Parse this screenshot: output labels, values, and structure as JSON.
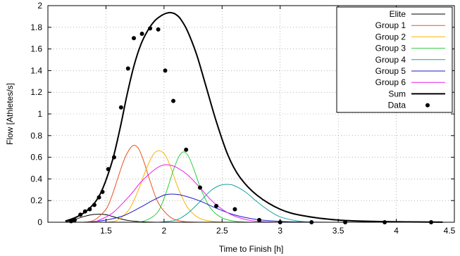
{
  "chart_data": {
    "type": "line",
    "title": "",
    "xlabel": "Time to Finish [h]",
    "ylabel": "Flow [Athletes/s]",
    "xlim": [
      1,
      4.5
    ],
    "ylim": [
      0,
      2
    ],
    "grid": true,
    "legend_position": "top-right",
    "x_ticks": [
      1.5,
      2,
      2.5,
      3,
      3.5,
      4,
      4.5
    ],
    "x_tick_labels": [
      "1.5",
      "2",
      "2.5",
      "3",
      "3.5",
      "4",
      "4.5"
    ],
    "y_ticks": [
      0,
      0.2,
      0.4,
      0.6,
      0.8,
      1,
      1.2,
      1.4,
      1.6,
      1.8,
      2
    ],
    "y_tick_labels": [
      "0",
      "0.2",
      "0.4",
      "0.6",
      "0.8",
      "1",
      "1.2",
      "1.4",
      "1.6",
      "1.8",
      "2"
    ],
    "series": [
      {
        "name": "Elite",
        "color": "#000000",
        "style": "line",
        "x": [
          1.15,
          1.22,
          1.3,
          1.38,
          1.45,
          1.5,
          1.55,
          1.6,
          1.65,
          1.7,
          1.8,
          1.9,
          2.0
        ],
        "y": [
          0.0,
          0.02,
          0.05,
          0.07,
          0.075,
          0.07,
          0.055,
          0.04,
          0.025,
          0.015,
          0.005,
          0.001,
          0.0
        ]
      },
      {
        "name": "Group 1",
        "color": "#e8541e",
        "style": "line",
        "x": [
          1.3,
          1.4,
          1.5,
          1.55,
          1.6,
          1.65,
          1.7,
          1.74,
          1.78,
          1.82,
          1.88,
          1.95,
          2.05,
          2.15,
          2.25,
          2.35
        ],
        "y": [
          0.0,
          0.02,
          0.12,
          0.24,
          0.4,
          0.56,
          0.67,
          0.71,
          0.68,
          0.58,
          0.38,
          0.18,
          0.05,
          0.01,
          0.002,
          0.0
        ]
      },
      {
        "name": "Group 2",
        "color": "#f7b500",
        "style": "line",
        "x": [
          1.5,
          1.6,
          1.7,
          1.78,
          1.85,
          1.91,
          1.96,
          2.01,
          2.06,
          2.12,
          2.2,
          2.3,
          2.42,
          2.55
        ],
        "y": [
          0.0,
          0.02,
          0.12,
          0.3,
          0.5,
          0.63,
          0.66,
          0.62,
          0.5,
          0.32,
          0.14,
          0.04,
          0.008,
          0.0
        ]
      },
      {
        "name": "Group 3",
        "color": "#2ecc40",
        "style": "line",
        "x": [
          1.75,
          1.85,
          1.95,
          2.02,
          2.08,
          2.13,
          2.17,
          2.21,
          2.26,
          2.32,
          2.4,
          2.5,
          2.62,
          2.75
        ],
        "y": [
          0.0,
          0.02,
          0.1,
          0.28,
          0.48,
          0.61,
          0.65,
          0.61,
          0.48,
          0.3,
          0.13,
          0.04,
          0.008,
          0.0
        ]
      },
      {
        "name": "Group 4",
        "color": "#1aa3a3",
        "style": "line",
        "x": [
          1.95,
          2.1,
          2.2,
          2.3,
          2.4,
          2.48,
          2.54,
          2.6,
          2.7,
          2.8,
          2.9,
          3.0,
          3.15,
          3.3
        ],
        "y": [
          0.0,
          0.02,
          0.08,
          0.18,
          0.29,
          0.34,
          0.35,
          0.34,
          0.28,
          0.19,
          0.11,
          0.05,
          0.012,
          0.0
        ]
      },
      {
        "name": "Group 5",
        "color": "#1a1acc",
        "style": "line",
        "x": [
          1.35,
          1.5,
          1.65,
          1.8,
          1.9,
          2.0,
          2.07,
          2.15,
          2.3,
          2.45,
          2.6,
          2.8,
          3.0,
          3.2,
          3.45
        ],
        "y": [
          0.0,
          0.02,
          0.06,
          0.14,
          0.2,
          0.25,
          0.26,
          0.25,
          0.2,
          0.13,
          0.07,
          0.025,
          0.008,
          0.002,
          0.0
        ]
      },
      {
        "name": "Group 6",
        "color": "#e81ee8",
        "style": "line",
        "x": [
          1.4,
          1.55,
          1.7,
          1.8,
          1.9,
          1.97,
          2.03,
          2.1,
          2.2,
          2.3,
          2.4,
          2.5,
          2.6,
          2.75,
          2.95
        ],
        "y": [
          0.0,
          0.08,
          0.24,
          0.37,
          0.47,
          0.52,
          0.53,
          0.51,
          0.44,
          0.33,
          0.21,
          0.12,
          0.06,
          0.015,
          0.0
        ]
      },
      {
        "name": "Sum",
        "color": "#000000",
        "style": "thick-line",
        "x": [
          1.15,
          1.25,
          1.35,
          1.45,
          1.55,
          1.62,
          1.68,
          1.74,
          1.8,
          1.86,
          1.92,
          1.98,
          2.02,
          2.06,
          2.1,
          2.14,
          2.2,
          2.28,
          2.36,
          2.45,
          2.55,
          2.65,
          2.8,
          3.0,
          3.2,
          3.5,
          3.8,
          4.1,
          4.4
        ],
        "y": [
          0.01,
          0.05,
          0.12,
          0.26,
          0.55,
          0.86,
          1.17,
          1.44,
          1.64,
          1.77,
          1.86,
          1.91,
          1.93,
          1.935,
          1.92,
          1.88,
          1.77,
          1.55,
          1.26,
          0.93,
          0.62,
          0.42,
          0.25,
          0.12,
          0.06,
          0.02,
          0.008,
          0.003,
          0.001
        ]
      },
      {
        "name": "Data",
        "color": "#000000",
        "style": "points",
        "x": [
          1.2,
          1.23,
          1.28,
          1.32,
          1.36,
          1.4,
          1.44,
          1.47,
          1.52,
          1.57,
          1.63,
          1.69,
          1.74,
          1.81,
          1.88,
          1.95,
          2.01,
          2.08,
          2.19,
          2.31,
          2.45,
          2.61,
          2.82,
          3.0,
          3.27,
          3.56,
          3.9,
          4.3
        ],
        "y": [
          0.01,
          0.02,
          0.07,
          0.1,
          0.12,
          0.16,
          0.23,
          0.28,
          0.49,
          0.6,
          1.06,
          1.42,
          1.7,
          1.74,
          1.79,
          1.78,
          1.4,
          1.12,
          0.67,
          0.32,
          0.15,
          0.12,
          0.02,
          0.0,
          0.0,
          0.0,
          0.0,
          0.0
        ]
      }
    ]
  }
}
